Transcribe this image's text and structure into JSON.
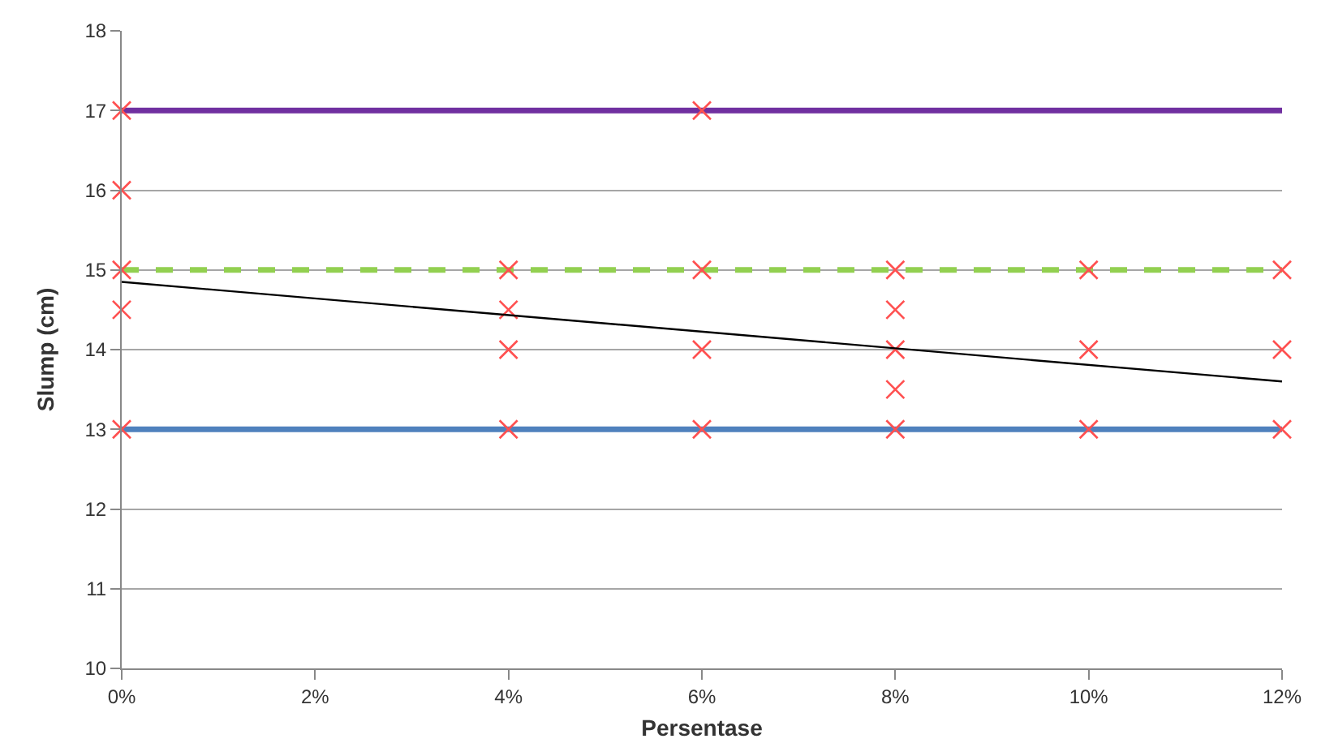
{
  "chart_data": {
    "type": "scatter",
    "xlabel": "Persentase",
    "ylabel": "Slump (cm)",
    "xlim": [
      0,
      12
    ],
    "xticks": [
      {
        "value": 0,
        "label": "0%"
      },
      {
        "value": 2,
        "label": "2%"
      },
      {
        "value": 4,
        "label": "4%"
      },
      {
        "value": 6,
        "label": "6%"
      },
      {
        "value": 8,
        "label": "8%"
      },
      {
        "value": 10,
        "label": "10%"
      },
      {
        "value": 12,
        "label": "12%"
      }
    ],
    "ylim": [
      10,
      18
    ],
    "yticks": [
      10,
      11,
      12,
      13,
      14,
      15,
      16,
      17,
      18
    ],
    "grid": "y",
    "marker": "cross",
    "ref_lines": [
      {
        "axis": "y",
        "value": 17,
        "color": "#7030a0",
        "line_style": "solid"
      },
      {
        "axis": "y",
        "value": 15,
        "color": "#92d050",
        "line_style": "dashed"
      },
      {
        "axis": "y",
        "value": 13,
        "color": "#4f81bd",
        "line_style": "solid"
      }
    ],
    "series": [
      {
        "color": "#ff5050",
        "x": [
          0,
          0,
          0,
          0,
          0,
          4,
          4,
          4,
          4,
          6,
          6,
          6,
          6,
          8,
          8,
          8,
          8,
          8,
          10,
          10,
          10,
          12,
          12,
          12
        ],
        "values": [
          17,
          16,
          15,
          14.5,
          13,
          15,
          14.5,
          14,
          13,
          17,
          15,
          14,
          13,
          15,
          14.5,
          14,
          13.5,
          13,
          15,
          14,
          13,
          15,
          14,
          13
        ]
      },
      {
        "type": "line",
        "color": "#000000",
        "marker": "none",
        "line_style": "solid",
        "x": [
          0,
          12
        ],
        "values": [
          14.85,
          13.6
        ]
      }
    ]
  }
}
